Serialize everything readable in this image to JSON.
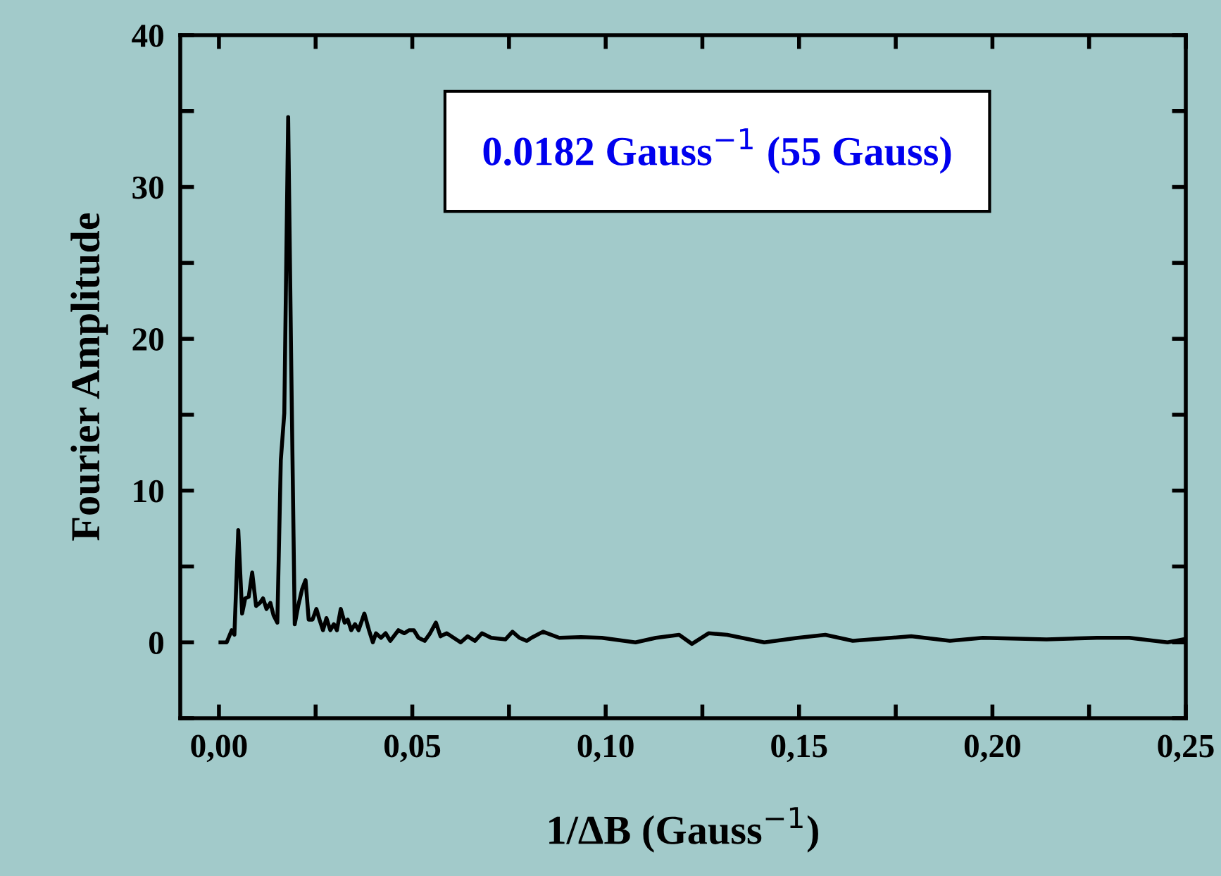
{
  "chart_data": {
    "type": "line",
    "xlabel": "1/ΔB (Gauss$^{−1}$)",
    "ylabel": "Fourier Amplitude",
    "annotations": [
      "0.0182 Gauss$^{−1}$ (55 Gauss)"
    ],
    "color": "#000000",
    "x": [
      0.0004,
      0.002,
      0.0033,
      0.004,
      0.005,
      0.006,
      0.0068,
      0.0077,
      0.0086,
      0.0096,
      0.0106,
      0.0114,
      0.0123,
      0.0133,
      0.0141,
      0.0151,
      0.016,
      0.0169,
      0.0179,
      0.0187,
      0.0196,
      0.0205,
      0.0215,
      0.0224,
      0.0232,
      0.0242,
      0.0252,
      0.026,
      0.0269,
      0.0278,
      0.0288,
      0.0297,
      0.0305,
      0.0315,
      0.0325,
      0.0333,
      0.0342,
      0.0352,
      0.0361,
      0.0376,
      0.0388,
      0.0398,
      0.0406,
      0.0419,
      0.0431,
      0.0443,
      0.0464,
      0.0479,
      0.0492,
      0.0504,
      0.0516,
      0.0532,
      0.0546,
      0.0561,
      0.0573,
      0.0589,
      0.0607,
      0.0625,
      0.0643,
      0.0662,
      0.068,
      0.0704,
      0.0741,
      0.0759,
      0.0777,
      0.0796,
      0.0808,
      0.0838,
      0.088,
      0.0936,
      0.099,
      0.1077,
      0.113,
      0.119,
      0.1223,
      0.1266,
      0.1314,
      0.141,
      0.1497,
      0.1568,
      0.1639,
      0.179,
      0.189,
      0.1975,
      0.214,
      0.227,
      0.2354,
      0.2453,
      0.2493
    ],
    "values": [
      0,
      0,
      0.8,
      0.5,
      7.4,
      1.9,
      2.9,
      3.0,
      4.6,
      2.4,
      2.6,
      2.9,
      2.2,
      2.6,
      1.8,
      1.3,
      12,
      15.1,
      34.6,
      18.2,
      1.2,
      2.4,
      3.5,
      4.1,
      1.5,
      1.5,
      2.2,
      1.5,
      0.8,
      1.6,
      0.8,
      1.2,
      0.8,
      2.2,
      1.3,
      1.5,
      0.8,
      1.2,
      0.8,
      1.9,
      0.8,
      0,
      0.6,
      0.3,
      0.6,
      0.1,
      0.8,
      0.6,
      0.8,
      0.8,
      0.3,
      0.1,
      0.6,
      1.3,
      0.4,
      0.6,
      0.3,
      0,
      0.4,
      0.1,
      0.6,
      0.3,
      0.2,
      0.7,
      0.3,
      0.1,
      0.3,
      0.7,
      0.3,
      0.35,
      0.3,
      0,
      0.3,
      0.5,
      -0.1,
      0.6,
      0.5,
      0,
      0.3,
      0.5,
      0.1,
      0.4,
      0.1,
      0.3,
      0.2,
      0.3,
      0.3,
      0,
      0.2
    ],
    "xlim": [
      -0.01,
      0.25
    ],
    "ylim": [
      -5,
      40
    ],
    "xticks": [
      {
        "value": 0,
        "label": "0,00"
      },
      {
        "value": 0.025,
        "label": null
      },
      {
        "value": 0.05,
        "label": "0,05"
      },
      {
        "value": 0.075,
        "label": null
      },
      {
        "value": 0.1,
        "label": "0,10"
      },
      {
        "value": 0.125,
        "label": null
      },
      {
        "value": 0.15,
        "label": "0,15"
      },
      {
        "value": 0.175,
        "label": null
      },
      {
        "value": 0.2,
        "label": "0,20"
      },
      {
        "value": 0.225,
        "label": null
      },
      {
        "value": 0.25,
        "label": "0,25"
      }
    ],
    "yticks": [
      {
        "value": -5,
        "label": null
      },
      0,
      {
        "value": 5,
        "label": null
      },
      10,
      {
        "value": 15,
        "label": null
      },
      20,
      {
        "value": 25,
        "label": null
      },
      30,
      {
        "value": 35,
        "label": null
      },
      40
    ],
    "grid": false,
    "legend": false,
    "marker": "none",
    "line_style": "solid"
  }
}
